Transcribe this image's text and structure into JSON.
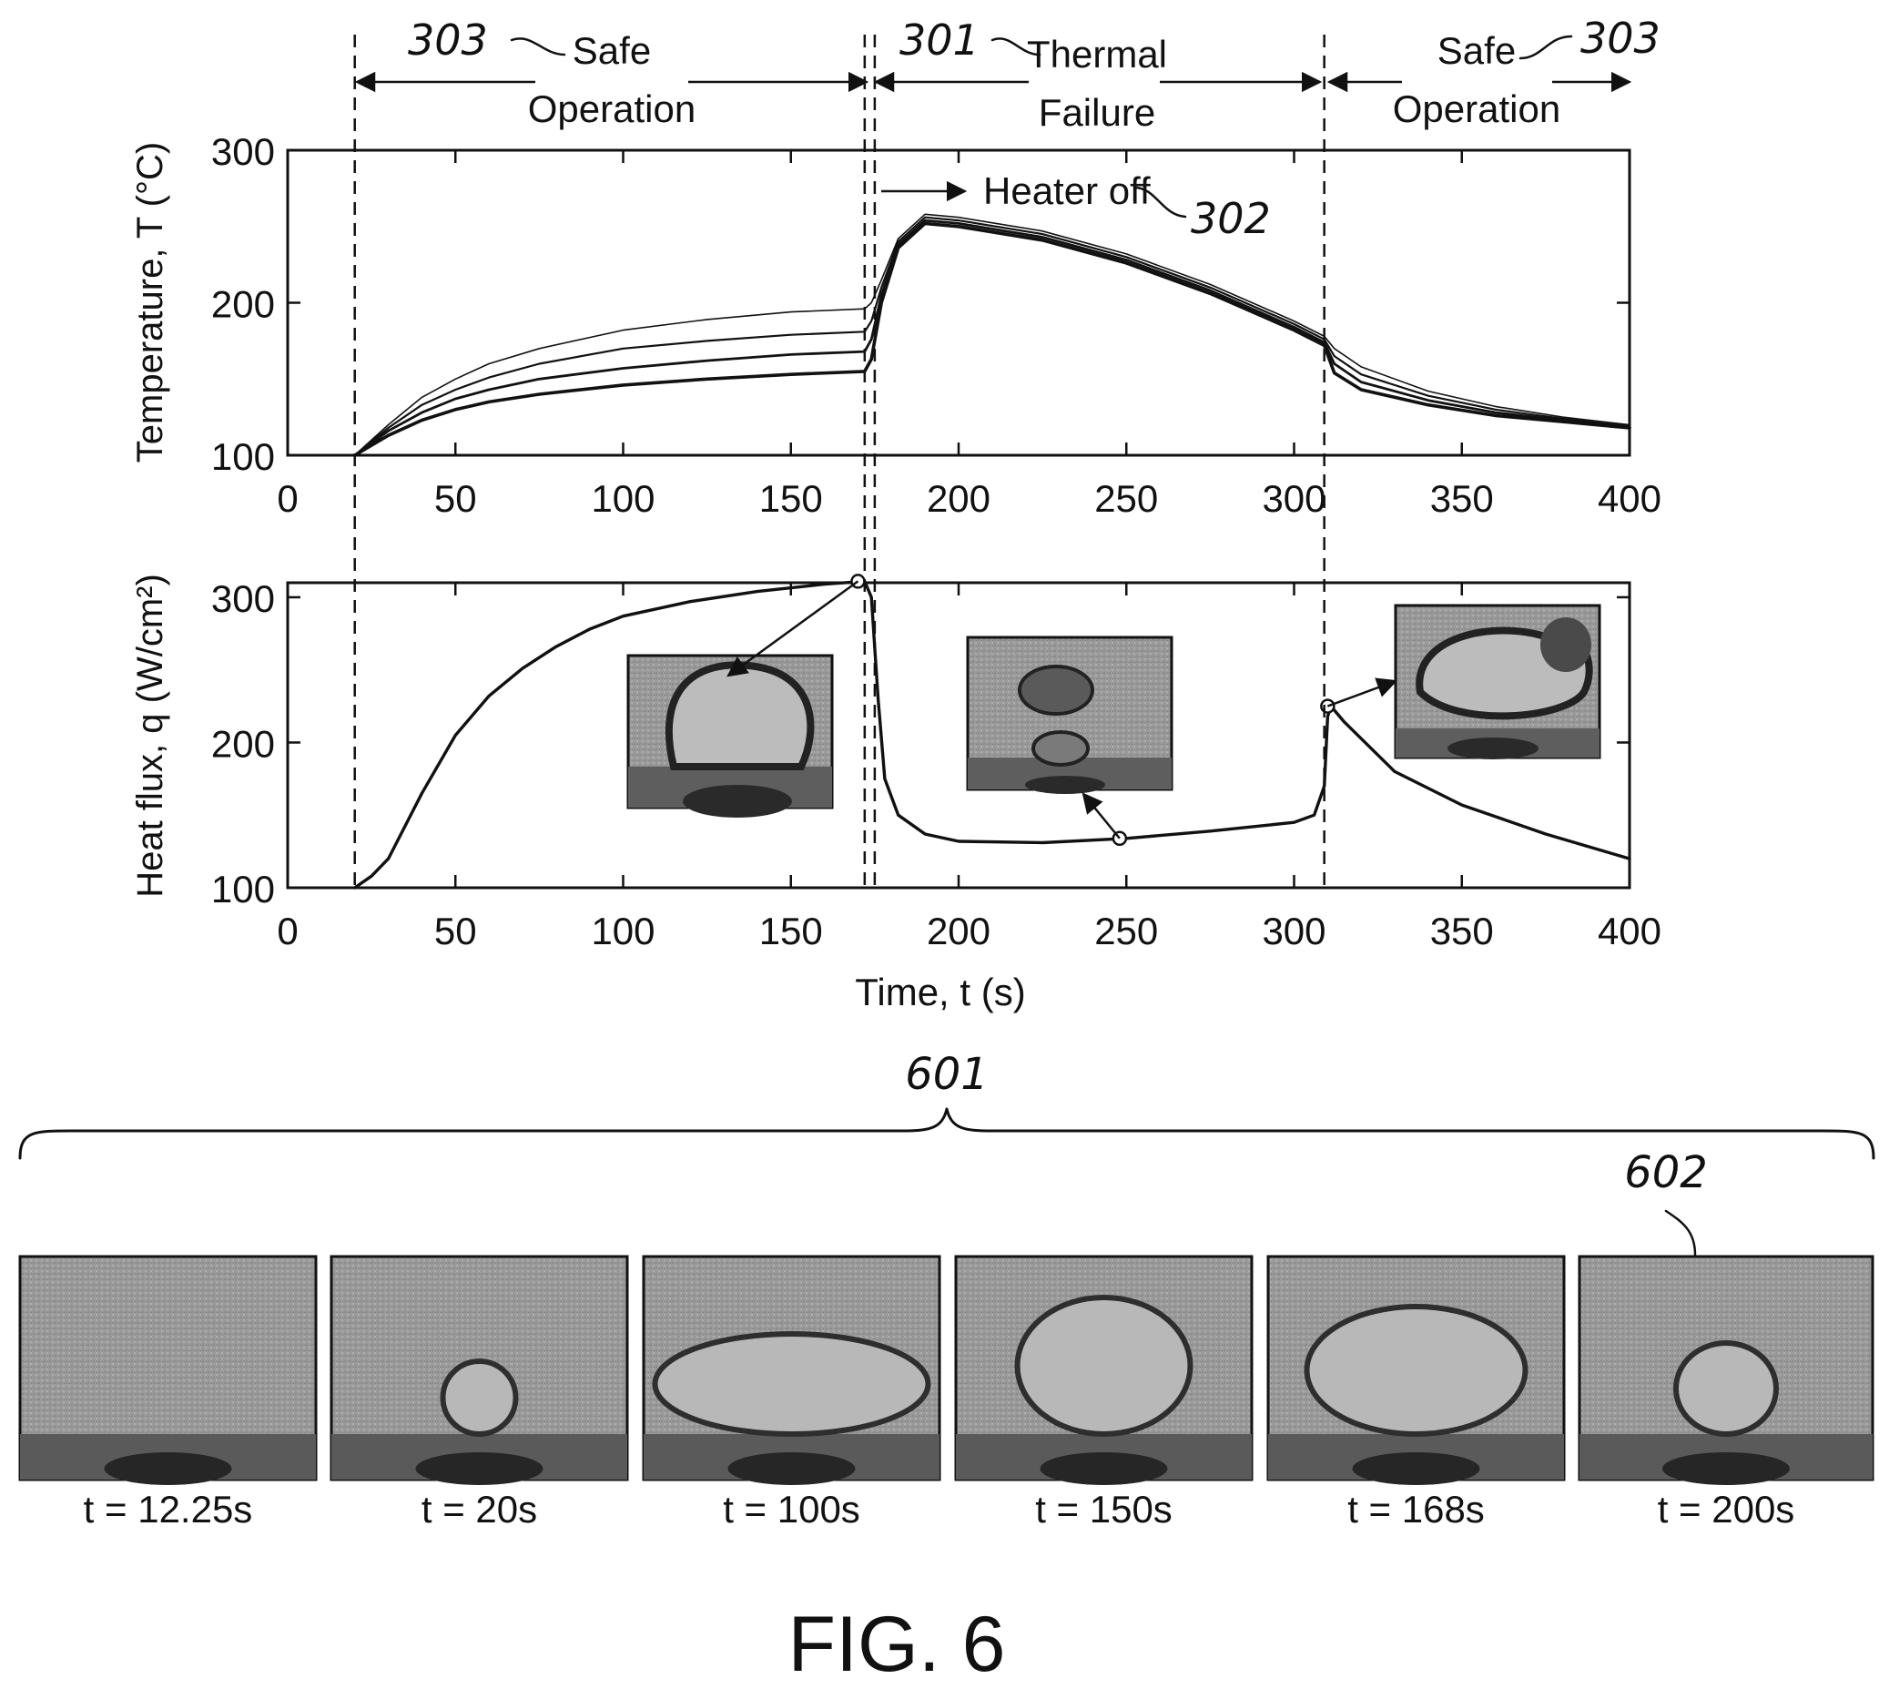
{
  "figure_label": "FIG. 6",
  "regions": [
    {
      "ref": "303",
      "label_line1": "Safe",
      "label_line2": "Operation"
    },
    {
      "ref": "301",
      "label_line1": "Thermal",
      "label_line2": "Failure"
    },
    {
      "ref": "303",
      "label_line1": "Safe",
      "label_line2": "Operation"
    }
  ],
  "heater_annotation": {
    "label": "Heater off",
    "ref": "302"
  },
  "strip": {
    "ref": "601",
    "highlight_ref": "602",
    "frames": [
      "t = 12.25s",
      "t = 20s",
      "t = 100s",
      "t = 150s",
      "t = 168s",
      "t = 200s"
    ]
  },
  "chart_data": [
    {
      "type": "line",
      "ylabel": "Temperature, T (°C)",
      "xlabel": "",
      "xlim": [
        0,
        400
      ],
      "ylim": [
        100,
        300
      ],
      "xticks": [
        0,
        50,
        100,
        150,
        200,
        250,
        300,
        350,
        400
      ],
      "yticks": [
        100,
        200,
        300
      ],
      "markers_x": [
        20,
        172,
        175,
        309
      ],
      "series": [
        {
          "values": [
            [
              20,
              100
            ],
            [
              30,
              120
            ],
            [
              40,
              138
            ],
            [
              50,
              150
            ],
            [
              60,
              160
            ],
            [
              75,
              170
            ],
            [
              100,
              182
            ],
            [
              125,
              189
            ],
            [
              150,
              194
            ],
            [
              172,
              196
            ],
            [
              174,
              200
            ],
            [
              177,
              215
            ],
            [
              182,
              242
            ],
            [
              190,
              258
            ],
            [
              200,
              256
            ],
            [
              225,
              247
            ],
            [
              250,
              232
            ],
            [
              275,
              212
            ],
            [
              300,
              188
            ],
            [
              309,
              178
            ],
            [
              312,
              170
            ],
            [
              320,
              158
            ],
            [
              340,
              142
            ],
            [
              360,
              132
            ],
            [
              380,
              125
            ],
            [
              400,
              120
            ]
          ]
        },
        {
          "values": [
            [
              20,
              100
            ],
            [
              30,
              118
            ],
            [
              40,
              133
            ],
            [
              50,
              143
            ],
            [
              60,
              151
            ],
            [
              75,
              160
            ],
            [
              100,
              170
            ],
            [
              125,
              175
            ],
            [
              150,
              179
            ],
            [
              172,
              181
            ],
            [
              174,
              188
            ],
            [
              177,
              210
            ],
            [
              182,
              240
            ],
            [
              190,
              256
            ],
            [
              200,
              254
            ],
            [
              225,
              245
            ],
            [
              250,
              230
            ],
            [
              275,
              210
            ],
            [
              300,
              186
            ],
            [
              309,
              176
            ],
            [
              312,
              165
            ],
            [
              320,
              153
            ],
            [
              340,
              139
            ],
            [
              360,
              130
            ],
            [
              380,
              124
            ],
            [
              400,
              119
            ]
          ]
        },
        {
          "values": [
            [
              20,
              100
            ],
            [
              30,
              116
            ],
            [
              40,
              128
            ],
            [
              50,
              137
            ],
            [
              60,
              143
            ],
            [
              75,
              150
            ],
            [
              100,
              157
            ],
            [
              125,
              162
            ],
            [
              150,
              166
            ],
            [
              172,
              168
            ],
            [
              174,
              176
            ],
            [
              177,
              205
            ],
            [
              182,
              238
            ],
            [
              190,
              254
            ],
            [
              200,
              252
            ],
            [
              225,
              243
            ],
            [
              250,
              228
            ],
            [
              275,
              208
            ],
            [
              300,
              184
            ],
            [
              309,
              174
            ],
            [
              312,
              160
            ],
            [
              320,
              148
            ],
            [
              340,
              136
            ],
            [
              360,
              128
            ],
            [
              380,
              123
            ],
            [
              400,
              119
            ]
          ]
        },
        {
          "values": [
            [
              20,
              100
            ],
            [
              30,
              113
            ],
            [
              40,
              123
            ],
            [
              50,
              130
            ],
            [
              60,
              135
            ],
            [
              75,
              140
            ],
            [
              100,
              146
            ],
            [
              125,
              150
            ],
            [
              150,
              153
            ],
            [
              172,
              155
            ],
            [
              174,
              163
            ],
            [
              177,
              200
            ],
            [
              182,
              236
            ],
            [
              190,
              252
            ],
            [
              200,
              250
            ],
            [
              225,
              241
            ],
            [
              250,
              226
            ],
            [
              275,
              206
            ],
            [
              300,
              182
            ],
            [
              309,
              172
            ],
            [
              312,
              154
            ],
            [
              320,
              143
            ],
            [
              340,
              133
            ],
            [
              360,
              126
            ],
            [
              380,
              122
            ],
            [
              400,
              118
            ]
          ]
        }
      ]
    },
    {
      "type": "line",
      "ylabel": "Heat flux, q (W/cm²)",
      "xlabel": "Time, t (s)",
      "xlim": [
        0,
        400
      ],
      "ylim": [
        100,
        310
      ],
      "xticks": [
        0,
        50,
        100,
        150,
        200,
        250,
        300,
        350,
        400
      ],
      "yticks": [
        100,
        200,
        300
      ],
      "markers_x": [
        20,
        172,
        175,
        309
      ],
      "series": [
        {
          "values": [
            [
              20,
              100
            ],
            [
              25,
              108
            ],
            [
              30,
              120
            ],
            [
              40,
              165
            ],
            [
              50,
              205
            ],
            [
              60,
              232
            ],
            [
              70,
              251
            ],
            [
              80,
              266
            ],
            [
              90,
              278
            ],
            [
              100,
              287
            ],
            [
              120,
              297
            ],
            [
              140,
              304
            ],
            [
              160,
              309
            ],
            [
              172,
              311
            ],
            [
              174,
              300
            ],
            [
              176,
              230
            ],
            [
              178,
              175
            ],
            [
              182,
              150
            ],
            [
              190,
              137
            ],
            [
              200,
              132
            ],
            [
              225,
              131
            ],
            [
              250,
              134
            ],
            [
              275,
              139
            ],
            [
              300,
              145
            ],
            [
              306,
              150
            ],
            [
              309,
              170
            ],
            [
              310,
              218
            ],
            [
              311,
              225
            ],
            [
              315,
              214
            ],
            [
              330,
              180
            ],
            [
              350,
              157
            ],
            [
              375,
              137
            ],
            [
              400,
              120
            ]
          ]
        }
      ],
      "circled_points": [
        [
          170,
          311
        ],
        [
          248,
          134
        ],
        [
          310,
          225
        ]
      ]
    }
  ]
}
